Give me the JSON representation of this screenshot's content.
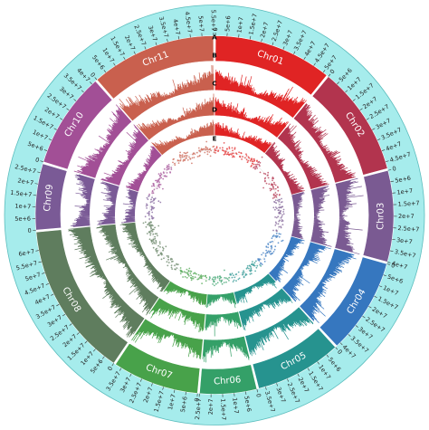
{
  "chart_data": {
    "type": "circos",
    "title": "",
    "track_labels": [
      "A",
      "B",
      "C",
      "D",
      "E"
    ],
    "tick_labels": [
      "0",
      "5e+6",
      "1e+7",
      "1.5e+7",
      "2e+7",
      "2.5e+7",
      "3e+7",
      "3.5e+7",
      "4e+7",
      "4.5e+7",
      "5e+7",
      "5.5e+7",
      "6e+7"
    ],
    "chromosomes": [
      {
        "name": "Chr01",
        "length_bp": 52000000,
        "color": "#e02424"
      },
      {
        "name": "Chr02",
        "length_bp": 48000000,
        "color": "#b2344e"
      },
      {
        "name": "Chr03",
        "length_bp": 40000000,
        "color": "#7a5a92"
      },
      {
        "name": "Chr04",
        "length_bp": 42000000,
        "color": "#3677bf"
      },
      {
        "name": "Chr05",
        "length_bp": 38000000,
        "color": "#26938f"
      },
      {
        "name": "Chr06",
        "length_bp": 25000000,
        "color": "#34a068"
      },
      {
        "name": "Chr07",
        "length_bp": 38000000,
        "color": "#48a24a"
      },
      {
        "name": "Chr08",
        "length_bp": 68000000,
        "color": "#5f7d5e"
      },
      {
        "name": "Chr09",
        "length_bp": 29000000,
        "color": "#7a5a96"
      },
      {
        "name": "Chr10",
        "length_bp": 42000000,
        "color": "#a24f96"
      },
      {
        "name": "Chr11",
        "length_bp": 55000000,
        "color": "#c9604e"
      }
    ],
    "colors": {
      "tick_band": "#a6ecec",
      "tick_band_border": "#5bbdbd"
    }
  }
}
